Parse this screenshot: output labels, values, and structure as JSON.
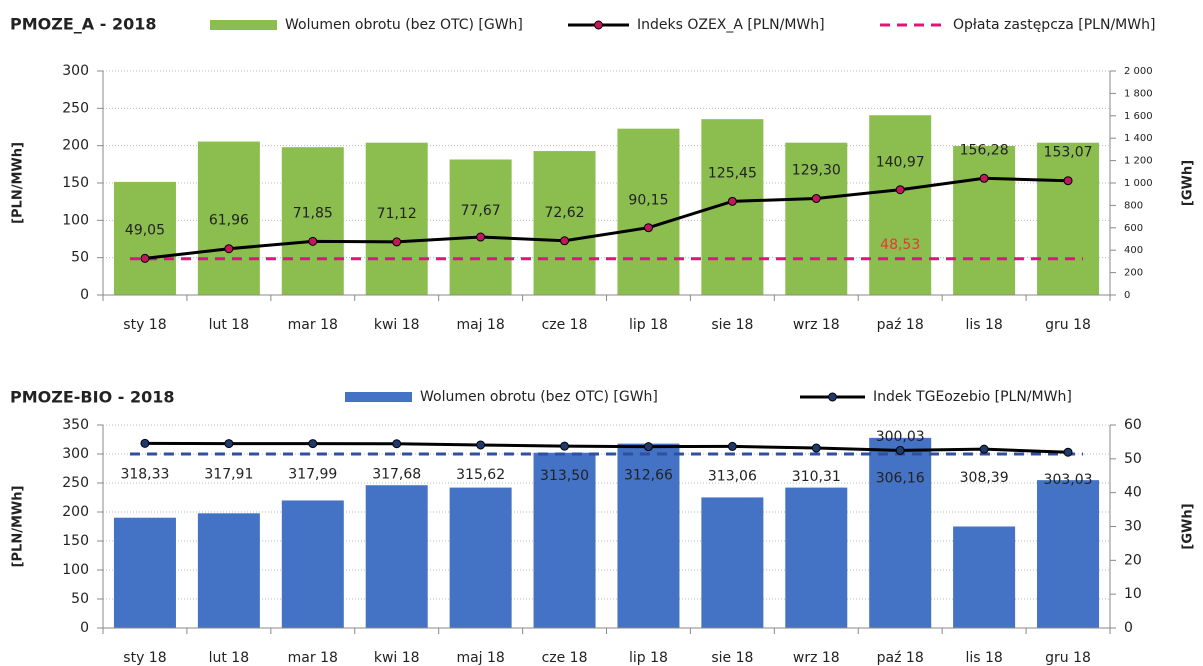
{
  "chart_data": [
    {
      "type": "combo",
      "title": "PMOZE_A - 2018",
      "ylabel": "[PLN/MWh]",
      "y2label": "[GWh]",
      "categories": [
        "sty 18",
        "lut 18",
        "mar 18",
        "kwi 18",
        "maj 18",
        "cze 18",
        "lip 18",
        "sie 18",
        "wrz 18",
        "paź 18",
        "lis 18",
        "gru 18"
      ],
      "ylim": [
        0,
        300
      ],
      "yticks": [
        0,
        50,
        100,
        150,
        200,
        250,
        300
      ],
      "y2lim": [
        0,
        2000
      ],
      "y2ticks": [
        0,
        200,
        400,
        600,
        800,
        {
          "value": 1000,
          "label": "1 000"
        },
        {
          "value": 1200,
          "label": "1 200"
        },
        {
          "value": 1400,
          "label": "1 400"
        },
        {
          "value": 1600,
          "label": "1 600"
        },
        {
          "value": 1800,
          "label": "1 800"
        },
        {
          "value": 2000,
          "label": "2 000"
        }
      ],
      "grid": true,
      "series": [
        {
          "name": "Wolumen obrotu (bez OTC) [GWh]",
          "type": "bar",
          "axis": "y2",
          "color": "#8bbe4f",
          "values": [
            1010,
            1370,
            1320,
            1360,
            1210,
            1285,
            1485,
            1570,
            1360,
            1605,
            1330,
            1360
          ]
        },
        {
          "name": "Indeks OZEX_A [PLN/MWh]",
          "type": "line",
          "color": "#000000",
          "marker_color": "#c2185b",
          "values": [
            49.05,
            61.96,
            71.85,
            71.12,
            77.67,
            72.62,
            90.15,
            125.45,
            129.3,
            140.97,
            156.28,
            153.07
          ],
          "value_labels": [
            "49,05",
            "61,96",
            "71,85",
            "71,12",
            "77,67",
            "72,62",
            "90,15",
            "125,45",
            "129,30",
            "140,97",
            "156,28",
            "153,07"
          ]
        },
        {
          "name": "Opłata zastępcza [PLN/MWh]",
          "type": "line",
          "style": "dashed",
          "color": "#e0157a",
          "label_color": "#e53935",
          "values": [
            48.53,
            48.53,
            48.53,
            48.53,
            48.53,
            48.53,
            48.53,
            48.53,
            48.53,
            48.53,
            48.53,
            48.53
          ],
          "value_labels": [
            null,
            null,
            null,
            null,
            null,
            null,
            null,
            null,
            null,
            "48,53",
            null,
            null
          ]
        }
      ]
    },
    {
      "type": "combo",
      "title": "PMOZE-BIO - 2018",
      "ylabel": "[PLN/MWh]",
      "y2label": "[GWh]",
      "categories": [
        "sty 18",
        "lut 18",
        "mar 18",
        "kwi 18",
        "maj 18",
        "cze 18",
        "lip 18",
        "sie 18",
        "wrz 18",
        "paź 18",
        "lis 18",
        "gru 18"
      ],
      "ylim": [
        0,
        350
      ],
      "yticks": [
        0,
        50,
        100,
        150,
        200,
        250,
        300,
        350
      ],
      "y2lim": [
        0,
        60
      ],
      "y2ticks": [
        0,
        10,
        20,
        30,
        40,
        50,
        60
      ],
      "grid": true,
      "series": [
        {
          "name": "Wolumen obrotu (bez OTC) [GWh]",
          "type": "bar",
          "axis": "y2",
          "color": "#4472c4",
          "values": [
            32.6,
            33.9,
            37.7,
            42.2,
            41.5,
            51.8,
            54.5,
            38.6,
            41.5,
            56.2,
            30.0,
            43.7
          ]
        },
        {
          "name": "Indek TGEozebio [PLN/MWh]",
          "type": "line",
          "color": "#000000",
          "marker_color": "#1f3a6e",
          "values": [
            318.33,
            317.91,
            317.99,
            317.68,
            315.62,
            313.5,
            312.66,
            313.06,
            310.31,
            306.16,
            308.39,
            303.03
          ],
          "value_labels": [
            "318,33",
            "317,91",
            "317,99",
            "317,68",
            "315,62",
            "313,50",
            "312,66",
            "313,06",
            "310,31",
            "306,16",
            "308,39",
            "303,03"
          ]
        },
        {
          "type": "line",
          "style": "dashed",
          "color": "#2f4f9f",
          "label_color": "#222222",
          "values": [
            300.03,
            300.03,
            300.03,
            300.03,
            300.03,
            300.03,
            300.03,
            300.03,
            300.03,
            300.03,
            300.03,
            300.03
          ],
          "value_labels": [
            null,
            null,
            null,
            null,
            null,
            null,
            null,
            null,
            null,
            "300,03",
            null,
            null
          ]
        }
      ]
    }
  ]
}
